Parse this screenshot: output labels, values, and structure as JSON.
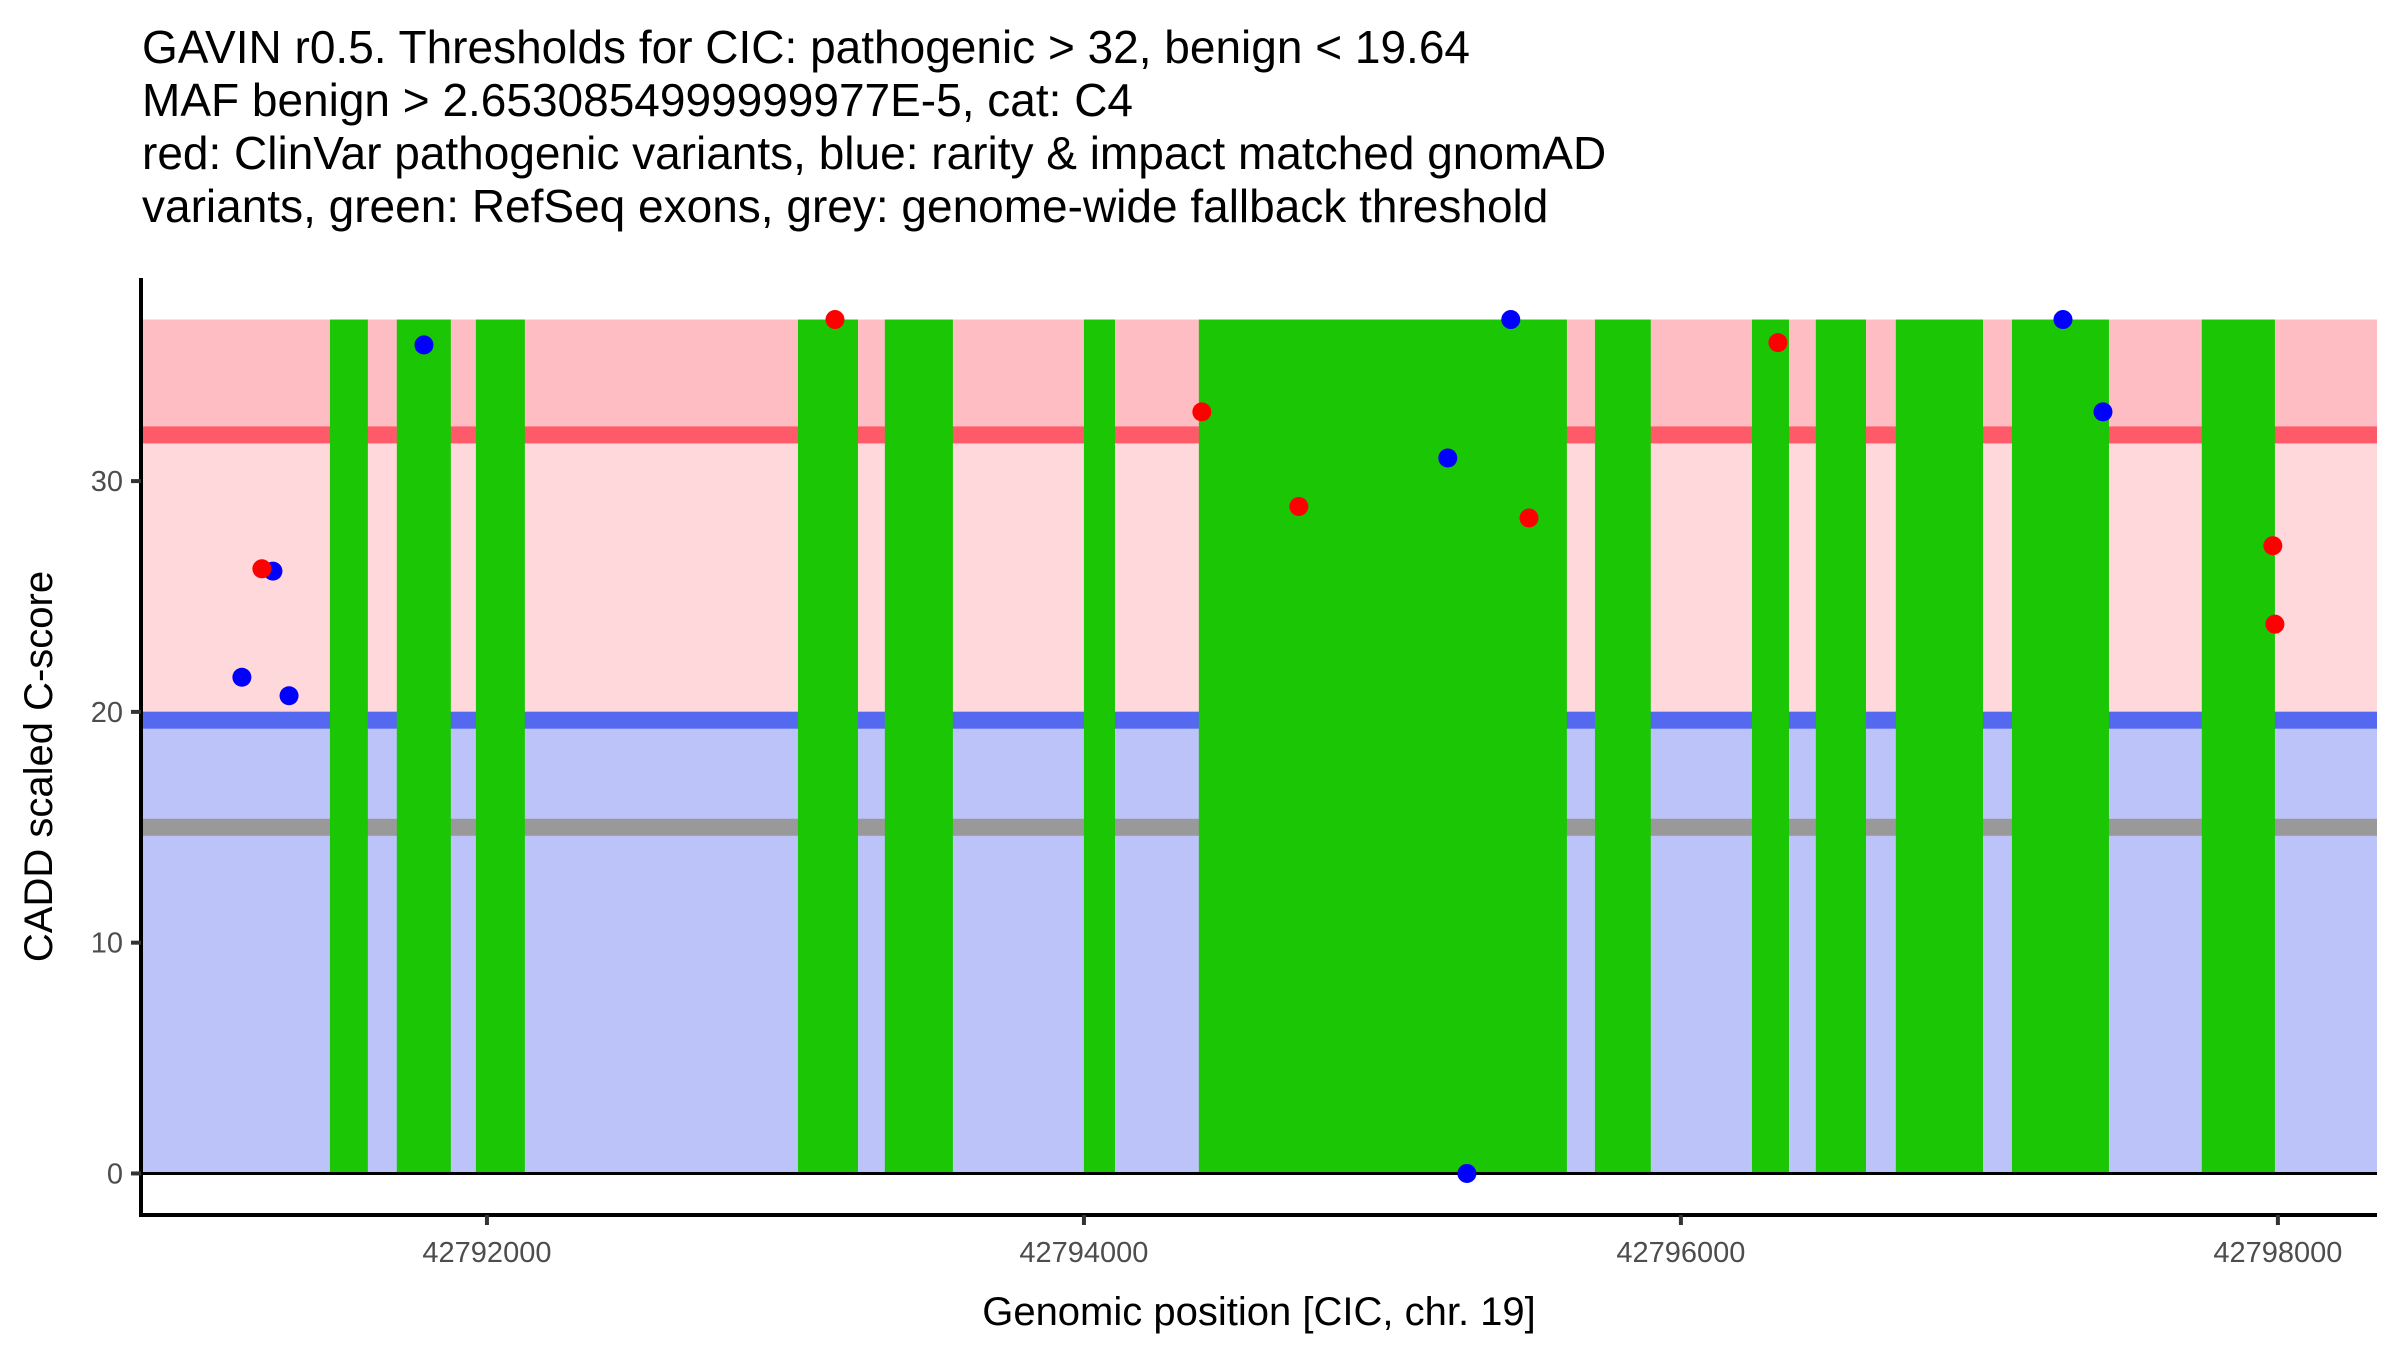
{
  "chart_data": {
    "type": "scatter",
    "title_lines": [
      "GAVIN r0.5. Thresholds for CIC: pathogenic > 32, benign < 19.64",
      "MAF benign > 2.6530854999999977E-5, cat: C4",
      "red: ClinVar pathogenic variants, blue: rarity & impact matched gnomAD",
      "variants, green: RefSeq exons, grey: genome-wide fallback threshold"
    ],
    "xlabel": "Genomic position [CIC, chr. 19]",
    "ylabel": "CADD scaled C-score",
    "xlim": [
      42790841,
      42798332
    ],
    "ylim": [
      -1.8,
      38.8
    ],
    "x_ticks": [
      {
        "value": 42792000,
        "label": "42792000"
      },
      {
        "value": 42794000,
        "label": "42794000"
      },
      {
        "value": 42796000,
        "label": "42796000"
      },
      {
        "value": 42798000,
        "label": "42798000"
      }
    ],
    "y_ticks": [
      {
        "value": 0,
        "label": "0"
      },
      {
        "value": 10,
        "label": "10"
      },
      {
        "value": 20,
        "label": "20"
      },
      {
        "value": 30,
        "label": "30"
      }
    ],
    "grid": false,
    "legend": "none",
    "thresholds": {
      "pathogenic": 32,
      "benign": 19.64,
      "genome_wide_fallback": 15,
      "max_score": 37,
      "maf_benign": "2.6530854999999977E-5",
      "category": "C4"
    },
    "regions": [
      {
        "name": "pathogenic-zone-upper",
        "from": 32,
        "to": 37,
        "color": "#FEBDC2"
      },
      {
        "name": "pathogenic-zone-lower",
        "from": 19.64,
        "to": 32,
        "color": "#FFD8DC"
      },
      {
        "name": "benign-zone",
        "from": 0,
        "to": 19.64,
        "color": "#BCC3F9"
      }
    ],
    "threshold_lines": [
      {
        "name": "pathogenic-threshold-line",
        "value": 32,
        "color": "#FF5A69"
      },
      {
        "name": "benign-threshold-line",
        "value": 19.64,
        "color": "#5468F0"
      },
      {
        "name": "fallback-threshold-line",
        "value": 15,
        "color": "#999999"
      }
    ],
    "exons": [
      {
        "start": 42791474,
        "end": 42791601
      },
      {
        "start": 42791698,
        "end": 42791879
      },
      {
        "start": 42791963,
        "end": 42792127
      },
      {
        "start": 42793042,
        "end": 42793243
      },
      {
        "start": 42793333,
        "end": 42793561
      },
      {
        "start": 42794000,
        "end": 42794104
      },
      {
        "start": 42794385,
        "end": 42795618
      },
      {
        "start": 42795712,
        "end": 42795899
      },
      {
        "start": 42796238,
        "end": 42796362
      },
      {
        "start": 42796452,
        "end": 42796620
      },
      {
        "start": 42796720,
        "end": 42797012
      },
      {
        "start": 42797109,
        "end": 42797434
      },
      {
        "start": 42797745,
        "end": 42797990
      }
    ],
    "exon_color": "#1BC605",
    "series": [
      {
        "name": "gnomAD matched variants",
        "color": "#0000FF",
        "points": [
          {
            "x": 42791283,
            "y": 26.1
          },
          {
            "x": 42791179,
            "y": 21.5
          },
          {
            "x": 42791337,
            "y": 20.7
          },
          {
            "x": 42791789,
            "y": 35.9
          },
          {
            "x": 42795219,
            "y": 31.0
          },
          {
            "x": 42795283,
            "y": 0.0
          },
          {
            "x": 42795430,
            "y": 37.0
          },
          {
            "x": 42797280,
            "y": 37.0
          },
          {
            "x": 42797414,
            "y": 33.0
          }
        ]
      },
      {
        "name": "ClinVar pathogenic variants",
        "color": "#FF0000",
        "points": [
          {
            "x": 42791246,
            "y": 26.2
          },
          {
            "x": 42793166,
            "y": 37.0
          },
          {
            "x": 42794395,
            "y": 33.0
          },
          {
            "x": 42794720,
            "y": 28.9
          },
          {
            "x": 42795491,
            "y": 28.4
          },
          {
            "x": 42796325,
            "y": 36.0
          },
          {
            "x": 42797983,
            "y": 27.2
          },
          {
            "x": 42797990,
            "y": 23.8
          }
        ]
      }
    ]
  }
}
